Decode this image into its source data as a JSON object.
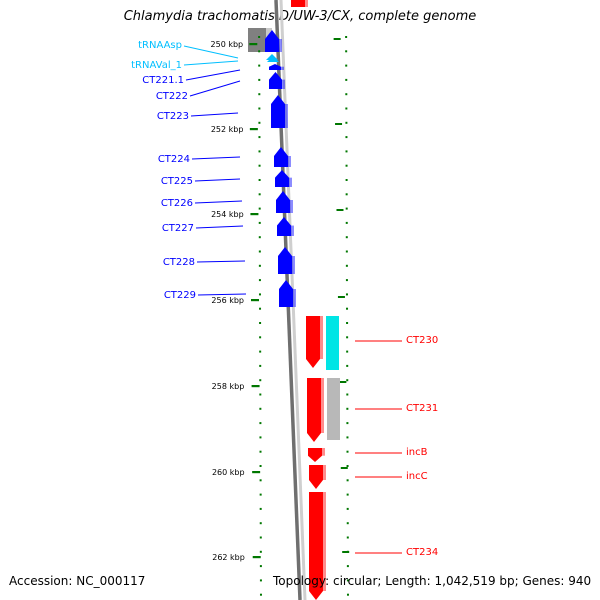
{
  "title": "Chlamydia trachomatis D/UW-3/CX, complete genome",
  "footer": {
    "accession": "Accession: NC_000117",
    "topology": "Topology: circular; Length: 1,042,519 bp; Genes: 940"
  },
  "colors": {
    "cds": "#0000ff",
    "trna": "#00bfff",
    "backbone": "#7f7f7f",
    "tick": "#007700",
    "highlight": "#ff0000",
    "highlight_aux": "#00e5e5",
    "aux_gray": "#b8b8b8"
  },
  "scale_labels": [
    "250 kbp",
    "252 kbp",
    "254 kbp",
    "256 kbp",
    "258 kbp",
    "260 kbp",
    "262 kbp"
  ],
  "left_features": [
    {
      "label": "tRNAAsp",
      "type": "trna"
    },
    {
      "label": "tRNAVal_1",
      "type": "trna"
    },
    {
      "label": "CT221.1",
      "type": "cds"
    },
    {
      "label": "CT222",
      "type": "cds"
    },
    {
      "label": "CT223",
      "type": "cds"
    },
    {
      "label": "CT224",
      "type": "cds"
    },
    {
      "label": "CT225",
      "type": "cds"
    },
    {
      "label": "CT226",
      "type": "cds"
    },
    {
      "label": "CT227",
      "type": "cds"
    },
    {
      "label": "CT228",
      "type": "cds"
    },
    {
      "label": "CT229",
      "type": "cds"
    }
  ],
  "right_features": [
    {
      "label": "CT230"
    },
    {
      "label": "CT231"
    },
    {
      "label": "incB"
    },
    {
      "label": "incC"
    },
    {
      "label": "CT234"
    }
  ]
}
